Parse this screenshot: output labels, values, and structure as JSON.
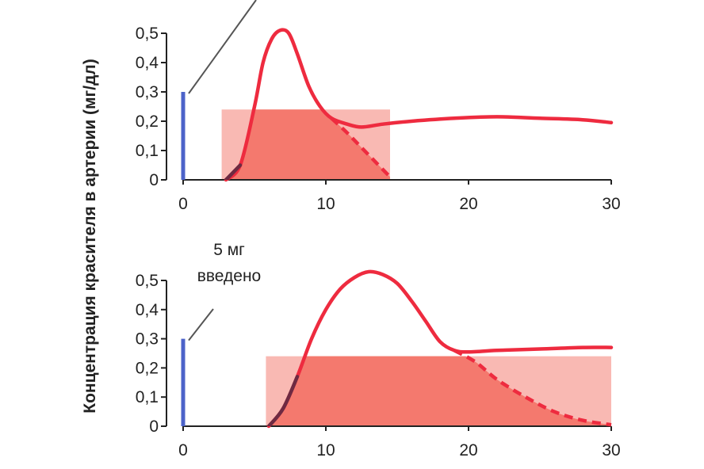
{
  "ylabel": "Концентрация красителя в артерии (мг/дл)",
  "colors": {
    "curve": "#ee2b3f",
    "bar_light": "#f9b9b3",
    "bar_dark": "#f4796e",
    "overlap": "#6e2a42",
    "dose": "#4c63c9",
    "axis": "#222222",
    "pointer": "#555555"
  },
  "chart_data": [
    {
      "type": "line",
      "xlabel": "",
      "ylabel": "Концентрация красителя в артерии (мг/дл)",
      "xlim": [
        0,
        30
      ],
      "ylim": [
        0,
        0.5
      ],
      "xticks": [
        "0",
        "10",
        "20",
        "30"
      ],
      "yticks": [
        "0",
        "0,1",
        "0,2",
        "0,3",
        "0,4",
        "0,5"
      ],
      "injection": {
        "x": 0,
        "value": 0.3
      },
      "annotation": "",
      "series": [
        {
          "style": "solid",
          "points": [
            [
              3,
              0
            ],
            [
              4,
              0.05
            ],
            [
              5,
              0.25
            ],
            [
              5.6,
              0.4
            ],
            [
              6.2,
              0.48
            ],
            [
              6.8,
              0.51
            ],
            [
              7.4,
              0.5
            ],
            [
              8,
              0.43
            ],
            [
              8.8,
              0.32
            ],
            [
              9.6,
              0.25
            ],
            [
              10.4,
              0.21
            ],
            [
              11.5,
              0.19
            ],
            [
              12.5,
              0.18
            ],
            [
              14,
              0.19
            ],
            [
              16,
              0.2
            ],
            [
              19,
              0.21
            ],
            [
              22,
              0.215
            ],
            [
              25,
              0.21
            ],
            [
              28,
              0.205
            ],
            [
              30,
              0.195
            ]
          ]
        },
        {
          "style": "dashed",
          "points": [
            [
              10.4,
              0.21
            ],
            [
              11.5,
              0.16
            ],
            [
              12.5,
              0.11
            ],
            [
              13.5,
              0.06
            ],
            [
              14.5,
              0.01
            ]
          ]
        }
      ],
      "rectangle": {
        "x_start": 2.7,
        "x_end": 14.5,
        "value": 0.24
      }
    },
    {
      "type": "line",
      "xlabel": "",
      "ylabel": "Концентрация красителя в артерии (мг/дл)",
      "xlim": [
        0,
        30
      ],
      "ylim": [
        0,
        0.5
      ],
      "xticks": [
        "0",
        "10",
        "20",
        "30"
      ],
      "yticks": [
        "0",
        "0,1",
        "0,2",
        "0,3",
        "0,4",
        "0,5"
      ],
      "injection": {
        "x": 0,
        "value": 0.3
      },
      "annotation": [
        "5 мг",
        "введено"
      ],
      "series": [
        {
          "style": "solid",
          "points": [
            [
              6,
              0
            ],
            [
              7,
              0.06
            ],
            [
              8,
              0.17
            ],
            [
              9,
              0.3
            ],
            [
              10,
              0.4
            ],
            [
              11,
              0.47
            ],
            [
              12,
              0.51
            ],
            [
              13,
              0.53
            ],
            [
              14,
              0.52
            ],
            [
              15,
              0.49
            ],
            [
              16,
              0.43
            ],
            [
              17,
              0.36
            ],
            [
              18,
              0.29
            ],
            [
              19,
              0.26
            ],
            [
              20,
              0.255
            ],
            [
              22,
              0.26
            ],
            [
              25,
              0.265
            ],
            [
              28,
              0.27
            ],
            [
              30,
              0.27
            ]
          ]
        },
        {
          "style": "dashed",
          "points": [
            [
              19,
              0.26
            ],
            [
              20.5,
              0.22
            ],
            [
              22,
              0.16
            ],
            [
              24,
              0.1
            ],
            [
              26,
              0.05
            ],
            [
              28,
              0.02
            ],
            [
              30,
              0.005
            ]
          ]
        }
      ],
      "rectangle": {
        "x_start": 5.8,
        "x_end": 30,
        "value": 0.24
      }
    }
  ]
}
